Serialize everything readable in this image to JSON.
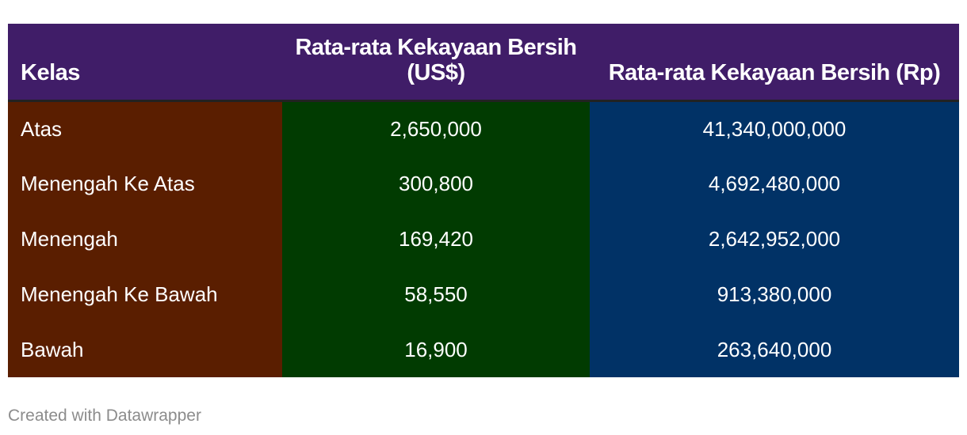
{
  "chart_data": {
    "type": "table",
    "columns": [
      "Kelas",
      "Rata-rata Kekayaan Bersih (US$)",
      "Rata-rata Kekayaan Bersih (Rp)"
    ],
    "rows": [
      {
        "kelas": "Atas",
        "usd": "2,650,000",
        "rp": "41,340,000,000"
      },
      {
        "kelas": "Menengah Ke Atas",
        "usd": "300,800",
        "rp": "4,692,480,000"
      },
      {
        "kelas": "Menengah",
        "usd": "169,420",
        "rp": "2,642,952,000"
      },
      {
        "kelas": "Menengah Ke Bawah",
        "usd": "58,550",
        "rp": "913,380,000"
      },
      {
        "kelas": "Bawah",
        "usd": "16,900",
        "rp": "263,640,000"
      }
    ],
    "colors": {
      "header": "#401d68",
      "kelas_column": "#5a1e00",
      "usd_column": "#013b01",
      "rp_column": "#013266"
    }
  },
  "footer": {
    "credit": "Created with Datawrapper"
  }
}
